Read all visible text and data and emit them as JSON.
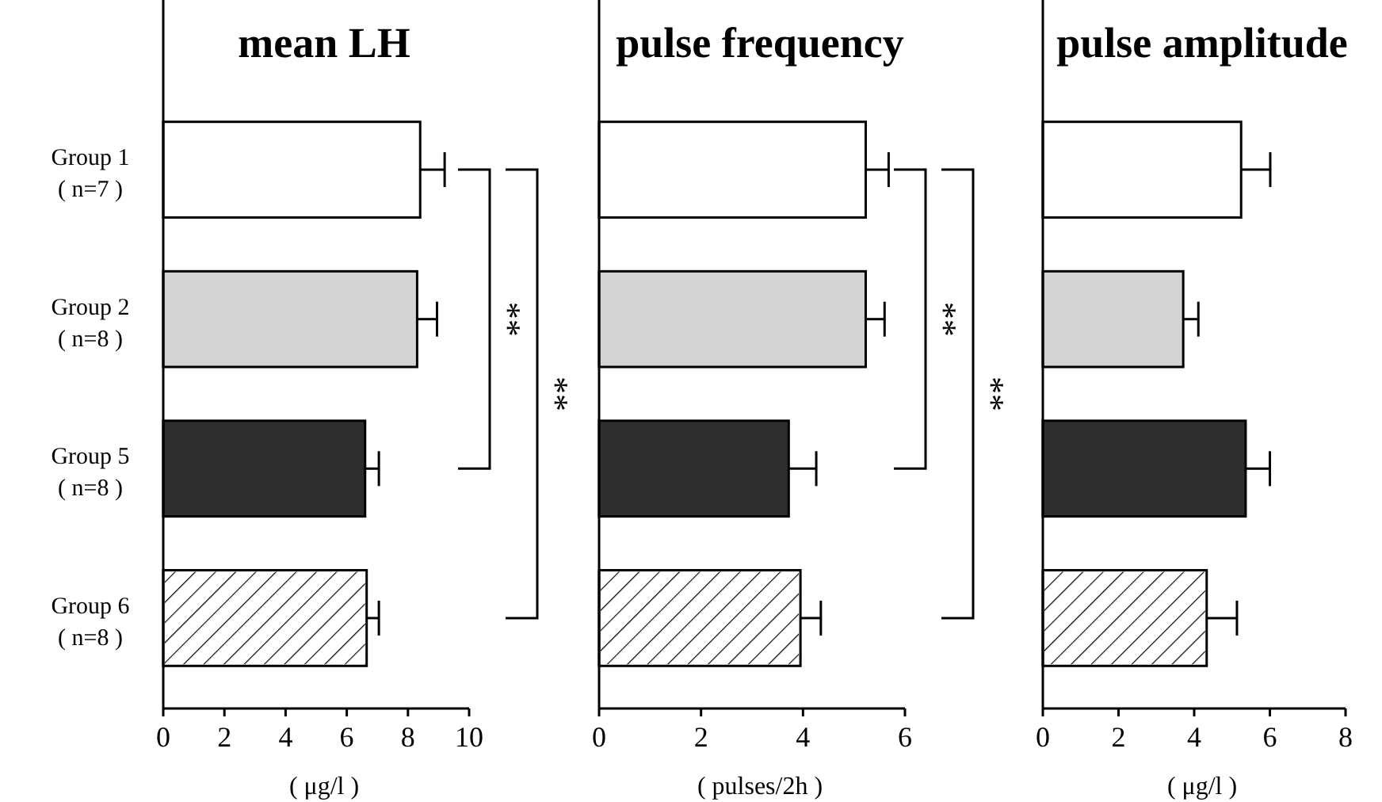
{
  "chart_data": [
    {
      "type": "bar",
      "orientation": "horizontal",
      "title": "mean LH",
      "xlabel": "( μg/l )",
      "categories": [
        "Group 1\n( n=7 )",
        "Group 2\n( n=8 )",
        "Group 5\n( n=8 )",
        "Group 6\n( n=8 )"
      ],
      "values": [
        8.4,
        8.3,
        6.6,
        6.65
      ],
      "errors": [
        0.8,
        0.65,
        0.45,
        0.4
      ],
      "colors": [
        "#ffffff",
        "#d4d4d4",
        "#2e2e2e",
        "#ffffff"
      ],
      "xlim": [
        0,
        10
      ],
      "xticks": [
        0,
        2,
        4,
        6,
        8,
        10
      ],
      "annotations": [
        "**",
        "**"
      ]
    },
    {
      "type": "bar",
      "orientation": "horizontal",
      "title": "pulse frequency",
      "xlabel": "( pulses/2h )",
      "categories": [
        null,
        null,
        null,
        null
      ],
      "values": [
        5.23,
        5.23,
        3.72,
        3.95
      ],
      "errors": [
        0.45,
        0.37,
        0.54,
        0.4
      ],
      "colors": [
        "#ffffff",
        "#d4d4d4",
        "#2e2e2e",
        "#ffffff"
      ],
      "xlim": [
        0,
        6
      ],
      "xticks": [
        0,
        2,
        4,
        6
      ],
      "annotations": [
        "**",
        "**"
      ]
    },
    {
      "type": "bar",
      "orientation": "horizontal",
      "title": "pulse amplitude",
      "xlabel": "( μg/l )",
      "categories": [
        null,
        null,
        null,
        null
      ],
      "values": [
        5.24,
        3.71,
        5.36,
        4.33
      ],
      "errors": [
        0.77,
        0.4,
        0.64,
        0.8
      ],
      "colors": [
        "#ffffff",
        "#d4d4d4",
        "#2e2e2e",
        "#ffffff"
      ],
      "xlim": [
        0,
        8
      ],
      "xticks": [
        0,
        2,
        4,
        6,
        8
      ]
    }
  ]
}
